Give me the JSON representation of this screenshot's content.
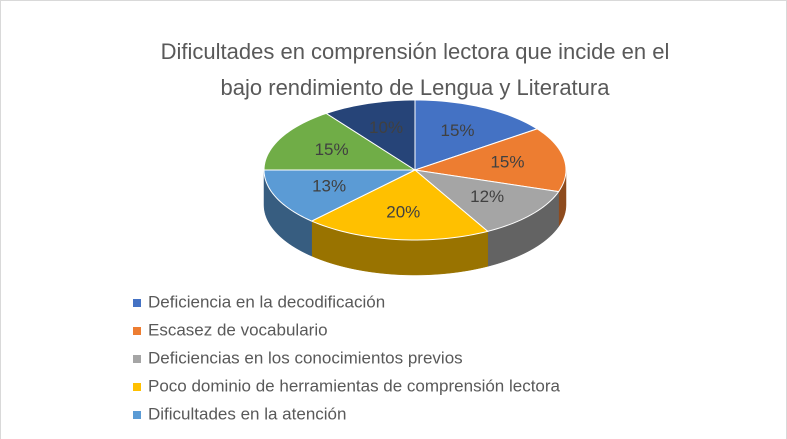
{
  "chart_data": {
    "type": "pie",
    "title": [
      "Dificultades en comprensión lectora que incide en el",
      "bajo rendimiento de Lengua y Literatura"
    ],
    "categories": [
      "Deficiencia en la decodificación",
      "Escasez de vocabulario",
      "Deficiencias en los conocimientos previos",
      "Poco dominio de herramientas de comprensión lectora",
      "Dificultades en la atención",
      null,
      null
    ],
    "values": [
      15,
      15,
      12,
      20,
      13,
      15,
      10
    ],
    "value_labels": [
      "15%",
      "15%",
      "12%",
      "20%",
      "13%",
      "15%",
      "10%"
    ],
    "colors": [
      "#4472c4",
      "#ed7d31",
      "#a5a5a5",
      "#ffc000",
      "#5b9bd5",
      "#70ad47",
      "#264478"
    ],
    "legend": "bottom"
  }
}
